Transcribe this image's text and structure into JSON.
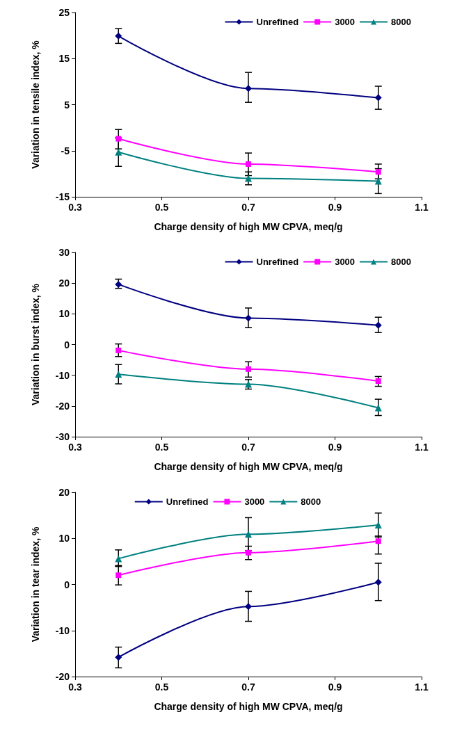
{
  "chart_data": [
    {
      "type": "line",
      "xlabel": "Charge density of high MW CPVA, meq/g",
      "ylabel": "Variation in tensile index, %",
      "x": [
        0.4,
        0.7,
        1.0
      ],
      "xlim": [
        0.3,
        1.1
      ],
      "xticks": [
        0.3,
        0.5,
        0.7,
        0.9,
        1.1
      ],
      "ylim": [
        -15,
        25
      ],
      "yticks": [
        -15,
        -5,
        5,
        15,
        25
      ],
      "grid": false,
      "legend": "top right",
      "series": [
        {
          "name": "Unrefined",
          "color": "#000080",
          "marker": "diamond",
          "values": [
            19.9,
            8.5,
            6.5
          ],
          "errors": [
            [
              18.3,
              21.5
            ],
            [
              5.5,
              12
            ],
            [
              4,
              9
            ]
          ]
        },
        {
          "name": "3000",
          "color": "#ff00ff",
          "marker": "square",
          "values": [
            -2.4,
            -7.9,
            -9.6
          ],
          "errors": [
            [
              -4.6,
              -0.4
            ],
            [
              -10.4,
              -5.5
            ],
            [
              -11.1,
              -7.9
            ]
          ]
        },
        {
          "name": "8000",
          "color": "#008080",
          "marker": "triangle",
          "values": [
            -5.3,
            -11,
            -11.6
          ],
          "errors": [
            [
              -8.4,
              -2.2
            ],
            [
              -12.4,
              -9.6
            ],
            [
              -14.3,
              -8.9
            ]
          ]
        }
      ]
    },
    {
      "type": "line",
      "xlabel": "Charge density of high MW CPVA, meq/g",
      "ylabel": "Variation in burst index, %",
      "x": [
        0.4,
        0.7,
        1.0
      ],
      "xlim": [
        0.3,
        1.1
      ],
      "xticks": [
        0.3,
        0.5,
        0.7,
        0.9,
        1.1
      ],
      "ylim": [
        -30,
        30
      ],
      "yticks": [
        -30,
        -20,
        -10,
        0,
        10,
        20,
        30
      ],
      "grid": false,
      "legend": "top right",
      "series": [
        {
          "name": "Unrefined",
          "color": "#000080",
          "marker": "diamond",
          "values": [
            19.6,
            8.6,
            6.3
          ],
          "errors": [
            [
              18.3,
              21.3
            ],
            [
              5.5,
              11.9
            ],
            [
              3.9,
              8.9
            ]
          ]
        },
        {
          "name": "3000",
          "color": "#ff00ff",
          "marker": "square",
          "values": [
            -1.9,
            -8,
            -11.9
          ],
          "errors": [
            [
              -3.9,
              0.2
            ],
            [
              -10.6,
              -5.6
            ],
            [
              -13.6,
              -10.4
            ]
          ]
        },
        {
          "name": "8000",
          "color": "#008080",
          "marker": "triangle",
          "values": [
            -9.7,
            -12.9,
            -20.6
          ],
          "errors": [
            [
              -12.8,
              -6.5
            ],
            [
              -14.5,
              -11.4
            ],
            [
              -23.1,
              -17.8
            ]
          ]
        }
      ]
    },
    {
      "type": "line",
      "xlabel": "Charge density of high MW CPVA, meq/g",
      "ylabel": "Variation in tear index, %",
      "x": [
        0.4,
        0.7,
        1.0
      ],
      "xlim": [
        0.3,
        1.1
      ],
      "xticks": [
        0.3,
        0.5,
        0.7,
        0.9,
        1.1
      ],
      "ylim": [
        -20,
        20
      ],
      "yticks": [
        -20,
        -10,
        0,
        10,
        20
      ],
      "grid": false,
      "legend": "top",
      "series": [
        {
          "name": "Unrefined",
          "color": "#000080",
          "marker": "diamond",
          "values": [
            -15.8,
            -4.8,
            0.5
          ],
          "errors": [
            [
              -18.1,
              -13.6
            ],
            [
              -8,
              -1.5
            ],
            [
              -3.5,
              4.6
            ]
          ]
        },
        {
          "name": "3000",
          "color": "#ff00ff",
          "marker": "square",
          "values": [
            2,
            6.9,
            9.4
          ],
          "errors": [
            [
              -0.1,
              4.1
            ],
            [
              5.4,
              8.3
            ],
            [
              6.6,
              10.5
            ]
          ]
        },
        {
          "name": "8000",
          "color": "#008080",
          "marker": "triangle",
          "values": [
            5.6,
            10.9,
            12.9
          ],
          "errors": [
            [
              3.9,
              7.5
            ],
            [
              7.3,
              14.5
            ],
            [
              10.3,
              15.5
            ]
          ]
        }
      ]
    }
  ]
}
